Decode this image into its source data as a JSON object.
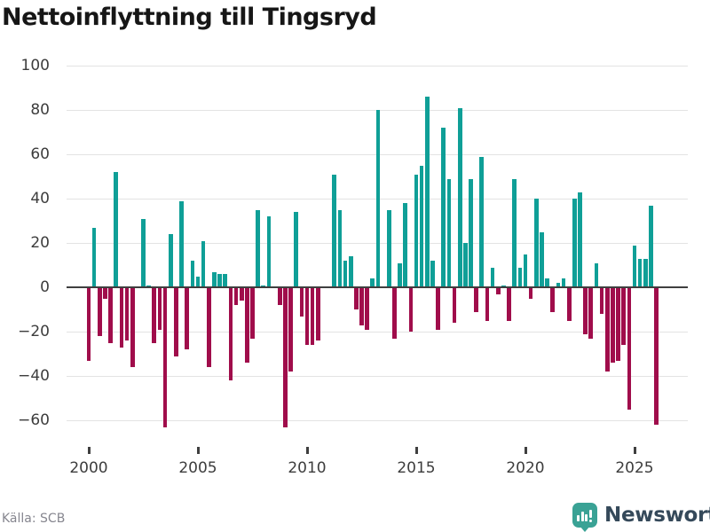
{
  "header": {
    "title": "Nettoinflyttning till Tingsryd"
  },
  "footer": {
    "source_label": "Källa: SCB",
    "brand": "Newsworthy"
  },
  "colors": {
    "positive": "#0f9f97",
    "negative": "#a00d4b",
    "brand_teal": "#3aa295",
    "brand_text": "#35495a"
  },
  "chart_data": {
    "type": "bar",
    "title": "Nettoinflyttning till Tingsryd",
    "xlabel": "",
    "ylabel": "",
    "x_start": "2000-Q1",
    "x_end": "2026-Q1",
    "frequency": "quarterly",
    "y_ticks": [
      100,
      80,
      60,
      40,
      20,
      0,
      -20,
      -40,
      -60
    ],
    "ylim": [
      -72,
      106
    ],
    "grid": "horizontal",
    "legend": "none",
    "x_tick_labels": [
      "2000",
      "2005",
      "2010",
      "2015",
      "2020",
      "2025"
    ],
    "values": [
      -33,
      27,
      -22,
      -5,
      -25,
      52,
      -27,
      -24,
      -36,
      0,
      31,
      1,
      -25,
      -19,
      -63,
      24,
      -31,
      39,
      -28,
      12,
      5,
      21,
      -36,
      7,
      6,
      6,
      -42,
      -8,
      -6,
      -34,
      -23,
      35,
      1,
      32,
      0,
      -8,
      -63,
      -38,
      34,
      -13,
      -26,
      -26,
      -24,
      0,
      0,
      51,
      35,
      12,
      14,
      -10,
      -17,
      -19,
      4,
      80,
      0,
      35,
      -23,
      11,
      38,
      -20,
      51,
      55,
      86,
      12,
      -19,
      72,
      49,
      -16,
      81,
      20,
      49,
      -11,
      59,
      -15,
      9,
      -3,
      1,
      -15,
      49,
      9,
      15,
      -5,
      40,
      25,
      4,
      -11,
      2,
      4,
      -15,
      40,
      43,
      -21,
      -23,
      11,
      -12,
      -38,
      -34,
      -33,
      -26,
      -55,
      19,
      13,
      13,
      37,
      -62
    ]
  }
}
